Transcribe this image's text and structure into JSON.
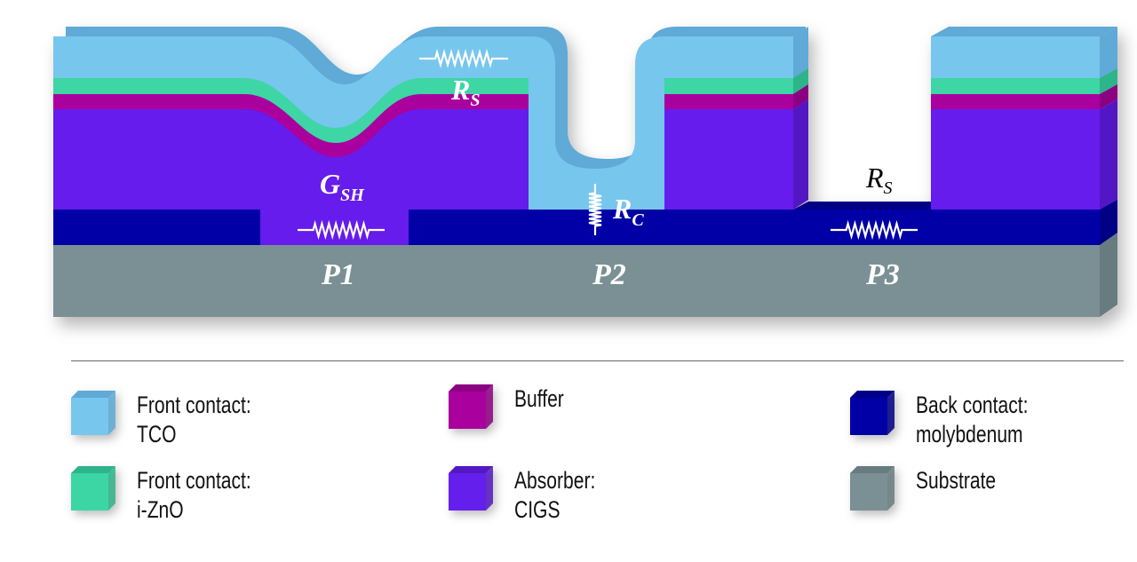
{
  "colors": {
    "tco": "#77C6EE",
    "tco_dark": "#5FAAD6",
    "zno": "#3CD6A4",
    "zno_dark": "#2EB48A",
    "buffer": "#AA009E",
    "buffer_dark": "#8C0082",
    "absorber": "#651FEC",
    "absorber_dark": "#5317C4",
    "molybdenum": "#0000A6",
    "molybdenum_dark": "#000086",
    "substrate": "#7A9094",
    "substrate_dark": "#687C80"
  },
  "labels": {
    "rs_top": {
      "main": "R",
      "sub": "S"
    },
    "gsh": {
      "main": "G",
      "sub": "SH"
    },
    "rc": {
      "main": "R",
      "sub": "C"
    },
    "rs_p3": {
      "main": "R",
      "sub": "S"
    },
    "p1": "P1",
    "p2": "P2",
    "p3": "P3"
  },
  "legend": [
    {
      "key": "tco",
      "line1": "Front contact:",
      "line2": "TCO"
    },
    {
      "key": "zno",
      "line1": "Front contact:",
      "line2": "i-ZnO"
    },
    {
      "key": "buffer",
      "line1": "Buffer",
      "line2": ""
    },
    {
      "key": "absorber",
      "line1": "Absorber:",
      "line2": "CIGS"
    },
    {
      "key": "molybdenum",
      "line1": "Back contact:",
      "line2": "molybdenum"
    },
    {
      "key": "substrate",
      "line1": "Substrate",
      "line2": ""
    }
  ]
}
